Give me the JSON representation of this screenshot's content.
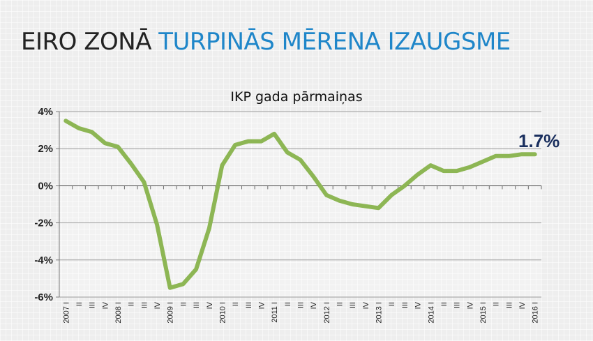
{
  "slide": {
    "title_part1": "EIRO ZONĀ",
    "title_part2": "TURPINĀS MĒRENA IZAUGSME",
    "title_part2_color": "#1f86c9"
  },
  "chart_data": {
    "type": "line",
    "title": "IKP gada pārmaiņas",
    "xlabel": "",
    "ylabel": "",
    "ylim": [
      -6,
      4
    ],
    "ytick_labels": [
      "4%",
      "2%",
      "0%",
      "-2%",
      "-4%",
      "-6%"
    ],
    "yticks": [
      4,
      2,
      0,
      -2,
      -4,
      -6
    ],
    "grid": true,
    "legend": "none",
    "line_color": "#8db654",
    "annotation_color": "#1a2f5e",
    "categories": [
      "2007 I",
      "II",
      "III",
      "IV",
      "2008 I",
      "II",
      "III",
      "IV",
      "2009 I",
      "II",
      "III",
      "IV",
      "2010 I",
      "II",
      "III",
      "IV",
      "2011 I",
      "II",
      "III",
      "IV",
      "2012 I",
      "II",
      "III",
      "IV",
      "2013 I",
      "II",
      "III",
      "IV",
      "2014 I",
      "II",
      "III",
      "IV",
      "2015 I",
      "II",
      "III",
      "IV",
      "2016 I"
    ],
    "series": [
      {
        "values": [
          3.5,
          3.1,
          2.9,
          2.3,
          2.1,
          1.2,
          0.2,
          -2.1,
          -5.5,
          -5.3,
          -4.5,
          -2.3,
          1.1,
          2.2,
          2.4,
          2.4,
          2.8,
          1.8,
          1.4,
          0.5,
          -0.5,
          -0.8,
          -1.0,
          -1.1,
          -1.2,
          -0.5,
          0.0,
          0.6,
          1.1,
          0.8,
          0.8,
          1.0,
          1.3,
          1.6,
          1.6,
          1.7,
          1.7
        ]
      }
    ],
    "annotations": [
      {
        "text": "1.7%",
        "index": 36,
        "value": 1.7
      }
    ]
  }
}
